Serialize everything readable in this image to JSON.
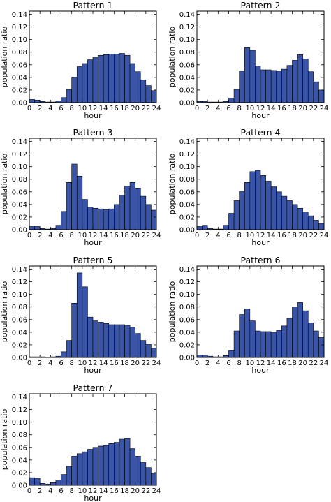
{
  "chart_data": [
    {
      "type": "bar",
      "title": "Pattern 1",
      "xlabel": "hour",
      "ylabel": "population ratio",
      "xlim": [
        0,
        24
      ],
      "ylim": [
        0,
        0.145
      ],
      "xticks": [
        "0",
        "2",
        "4",
        "6",
        "8",
        "10",
        "12",
        "14",
        "16",
        "18",
        "20",
        "22",
        "24"
      ],
      "yticks": [
        "0.00",
        "0.02",
        "0.04",
        "0.06",
        "0.08",
        "0.10",
        "0.12",
        "0.14"
      ],
      "categories": [
        "0",
        "1",
        "2",
        "3",
        "4",
        "5",
        "6",
        "7",
        "8",
        "9",
        "10",
        "11",
        "12",
        "13",
        "14",
        "15",
        "16",
        "17",
        "18",
        "19",
        "20",
        "21",
        "22",
        "23"
      ],
      "values": [
        0.005,
        0.004,
        0.002,
        0.001,
        0.001,
        0.003,
        0.008,
        0.021,
        0.04,
        0.057,
        0.062,
        0.068,
        0.072,
        0.075,
        0.076,
        0.077,
        0.077,
        0.078,
        0.075,
        0.062,
        0.049,
        0.036,
        0.027,
        0.019
      ]
    },
    {
      "type": "bar",
      "title": "Pattern 2",
      "xlabel": "hour",
      "ylabel": "population ratio",
      "xlim": [
        0,
        24
      ],
      "ylim": [
        0,
        0.145
      ],
      "xticks": [
        "0",
        "2",
        "4",
        "6",
        "8",
        "10",
        "12",
        "14",
        "16",
        "18",
        "20",
        "22",
        "24"
      ],
      "yticks": [
        "0.00",
        "0.02",
        "0.04",
        "0.06",
        "0.08",
        "0.10",
        "0.12",
        "0.14"
      ],
      "categories": [
        "0",
        "1",
        "2",
        "3",
        "4",
        "5",
        "6",
        "7",
        "8",
        "9",
        "10",
        "11",
        "12",
        "13",
        "14",
        "15",
        "16",
        "17",
        "18",
        "19",
        "20",
        "21",
        "22",
        "23"
      ],
      "values": [
        0.002,
        0.002,
        0.001,
        0.001,
        0.001,
        0.002,
        0.007,
        0.021,
        0.05,
        0.087,
        0.083,
        0.058,
        0.052,
        0.052,
        0.051,
        0.05,
        0.053,
        0.059,
        0.067,
        0.076,
        0.069,
        0.049,
        0.033,
        0.02
      ]
    },
    {
      "type": "bar",
      "title": "Pattern 3",
      "xlabel": "hour",
      "ylabel": "population ratio",
      "xlim": [
        0,
        24
      ],
      "ylim": [
        0,
        0.145
      ],
      "xticks": [
        "0",
        "2",
        "4",
        "6",
        "8",
        "10",
        "12",
        "14",
        "16",
        "18",
        "20",
        "22",
        "24"
      ],
      "yticks": [
        "0.00",
        "0.02",
        "0.04",
        "0.06",
        "0.08",
        "0.10",
        "0.12",
        "0.14"
      ],
      "categories": [
        "0",
        "1",
        "2",
        "3",
        "4",
        "5",
        "6",
        "7",
        "8",
        "9",
        "10",
        "11",
        "12",
        "13",
        "14",
        "15",
        "16",
        "17",
        "18",
        "19",
        "20",
        "21",
        "22",
        "23"
      ],
      "values": [
        0.005,
        0.005,
        0.002,
        0.001,
        0.002,
        0.007,
        0.029,
        0.075,
        0.104,
        0.085,
        0.048,
        0.036,
        0.034,
        0.033,
        0.032,
        0.033,
        0.04,
        0.055,
        0.069,
        0.075,
        0.066,
        0.053,
        0.04,
        0.031
      ]
    },
    {
      "type": "bar",
      "title": "Pattern 4",
      "xlabel": "hour",
      "ylabel": "population ratio",
      "xlim": [
        0,
        24
      ],
      "ylim": [
        0,
        0.145
      ],
      "xticks": [
        "0",
        "2",
        "4",
        "6",
        "8",
        "10",
        "12",
        "14",
        "16",
        "18",
        "20",
        "22",
        "24"
      ],
      "yticks": [
        "0.00",
        "0.02",
        "0.04",
        "0.06",
        "0.08",
        "0.10",
        "0.12",
        "0.14"
      ],
      "categories": [
        "0",
        "1",
        "2",
        "3",
        "4",
        "5",
        "6",
        "7",
        "8",
        "9",
        "10",
        "11",
        "12",
        "13",
        "14",
        "15",
        "16",
        "17",
        "18",
        "19",
        "20",
        "21",
        "22",
        "23"
      ],
      "values": [
        0.005,
        0.007,
        0.002,
        0.001,
        0.001,
        0.007,
        0.026,
        0.046,
        0.061,
        0.075,
        0.092,
        0.094,
        0.086,
        0.077,
        0.068,
        0.06,
        0.053,
        0.046,
        0.04,
        0.034,
        0.028,
        0.022,
        0.015,
        0.01
      ]
    },
    {
      "type": "bar",
      "title": "Pattern 5",
      "xlabel": "hour",
      "ylabel": "population ratio",
      "xlim": [
        0,
        24
      ],
      "ylim": [
        0,
        0.145
      ],
      "xticks": [
        "0",
        "2",
        "4",
        "6",
        "8",
        "10",
        "12",
        "14",
        "16",
        "18",
        "20",
        "22",
        "24"
      ],
      "yticks": [
        "0.00",
        "0.02",
        "0.04",
        "0.06",
        "0.08",
        "0.10",
        "0.12",
        "0.14"
      ],
      "categories": [
        "0",
        "1",
        "2",
        "3",
        "4",
        "5",
        "6",
        "7",
        "8",
        "9",
        "10",
        "11",
        "12",
        "13",
        "14",
        "15",
        "16",
        "17",
        "18",
        "19",
        "20",
        "21",
        "22",
        "23"
      ],
      "values": [
        0.001,
        0.001,
        0.001,
        0.0,
        0.001,
        0.002,
        0.009,
        0.027,
        0.086,
        0.134,
        0.112,
        0.064,
        0.058,
        0.056,
        0.054,
        0.052,
        0.052,
        0.052,
        0.051,
        0.048,
        0.038,
        0.027,
        0.021,
        0.015
      ]
    },
    {
      "type": "bar",
      "title": "Pattern 6",
      "xlabel": "hour",
      "ylabel": "population ratio",
      "xlim": [
        0,
        24
      ],
      "ylim": [
        0,
        0.145
      ],
      "xticks": [
        "0",
        "2",
        "4",
        "6",
        "8",
        "10",
        "12",
        "14",
        "16",
        "18",
        "20",
        "22",
        "24"
      ],
      "yticks": [
        "0.00",
        "0.02",
        "0.04",
        "0.06",
        "0.08",
        "0.10",
        "0.12",
        "0.14"
      ],
      "categories": [
        "0",
        "1",
        "2",
        "3",
        "4",
        "5",
        "6",
        "7",
        "8",
        "9",
        "10",
        "11",
        "12",
        "13",
        "14",
        "15",
        "16",
        "17",
        "18",
        "19",
        "20",
        "21",
        "22",
        "23"
      ],
      "values": [
        0.004,
        0.004,
        0.002,
        0.001,
        0.001,
        0.003,
        0.011,
        0.042,
        0.068,
        0.077,
        0.058,
        0.042,
        0.041,
        0.041,
        0.04,
        0.043,
        0.05,
        0.062,
        0.08,
        0.087,
        0.074,
        0.055,
        0.042,
        0.032
      ]
    },
    {
      "type": "bar",
      "title": "Pattern 7",
      "xlabel": "hour",
      "ylabel": "population ratio",
      "xlim": [
        0,
        24
      ],
      "ylim": [
        0,
        0.145
      ],
      "xticks": [
        "0",
        "2",
        "4",
        "6",
        "8",
        "10",
        "12",
        "14",
        "16",
        "18",
        "20",
        "22",
        "24"
      ],
      "yticks": [
        "0.00",
        "0.02",
        "0.04",
        "0.06",
        "0.08",
        "0.10",
        "0.12",
        "0.14"
      ],
      "categories": [
        "0",
        "1",
        "2",
        "3",
        "4",
        "5",
        "6",
        "7",
        "8",
        "9",
        "10",
        "11",
        "12",
        "13",
        "14",
        "15",
        "16",
        "17",
        "18",
        "19",
        "20",
        "21",
        "22",
        "23"
      ],
      "values": [
        0.012,
        0.011,
        0.003,
        0.002,
        0.004,
        0.008,
        0.017,
        0.03,
        0.046,
        0.05,
        0.053,
        0.057,
        0.06,
        0.062,
        0.063,
        0.066,
        0.068,
        0.073,
        0.074,
        0.058,
        0.046,
        0.036,
        0.028,
        0.019
      ]
    }
  ]
}
